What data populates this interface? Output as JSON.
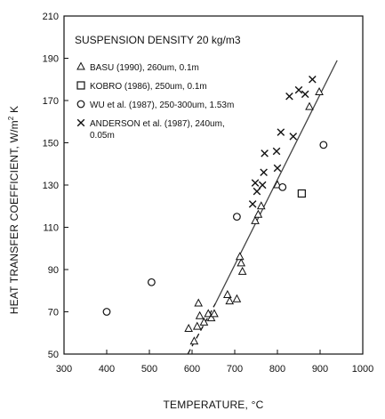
{
  "chart_data": {
    "type": "scatter",
    "title": "",
    "annotation": "SUSPENSION DENSITY 20 kg/m3",
    "xlabel": "TEMPERATURE, °C",
    "ylabel_main": "HEAT TRANSFER COEFFICIENT, W/m",
    "ylabel_sup": "2",
    "ylabel_tail": " K",
    "xlim": [
      300,
      1000
    ],
    "ylim": [
      50,
      210
    ],
    "xticks": [
      300,
      400,
      500,
      600,
      700,
      800,
      900,
      1000
    ],
    "yticks": [
      50,
      70,
      90,
      110,
      130,
      150,
      170,
      190,
      210
    ],
    "grid": false,
    "legend_position": "top-left",
    "series": [
      {
        "name": "BASU (1990), 260um, 0.1m",
        "marker": "triangle",
        "points": [
          [
            592,
            62
          ],
          [
            605,
            56
          ],
          [
            612,
            63
          ],
          [
            615,
            74
          ],
          [
            618,
            68
          ],
          [
            628,
            65
          ],
          [
            638,
            69
          ],
          [
            645,
            67
          ],
          [
            652,
            69
          ],
          [
            683,
            78
          ],
          [
            688,
            75
          ],
          [
            705,
            76
          ],
          [
            712,
            96
          ],
          [
            715,
            93
          ],
          [
            718,
            89
          ],
          [
            748,
            113
          ],
          [
            755,
            116
          ],
          [
            762,
            120
          ],
          [
            800,
            130
          ],
          [
            875,
            167
          ],
          [
            898,
            174
          ]
        ]
      },
      {
        "name": "KOBRO (1986), 250um, 0.1m",
        "marker": "square",
        "points": [
          [
            857,
            126
          ]
        ]
      },
      {
        "name": "WU et al. (1987), 250-300um, 1.53m",
        "marker": "circle",
        "points": [
          [
            400,
            70
          ],
          [
            505,
            84
          ],
          [
            705,
            115
          ],
          [
            812,
            129
          ],
          [
            908,
            149
          ]
        ]
      },
      {
        "name": "ANDERSON et al. (1987), 240um,",
        "name_line2": "0.05m",
        "marker": "x",
        "points": [
          [
            742,
            121
          ],
          [
            748,
            131
          ],
          [
            752,
            127
          ],
          [
            765,
            130
          ],
          [
            768,
            136
          ],
          [
            770,
            145
          ],
          [
            798,
            146
          ],
          [
            800,
            138
          ],
          [
            808,
            155
          ],
          [
            828,
            172
          ],
          [
            837,
            153
          ],
          [
            850,
            175
          ],
          [
            865,
            173
          ],
          [
            882,
            180
          ]
        ]
      }
    ],
    "fit_line": {
      "solid_from": [
        655,
        74
      ],
      "solid_to": [
        940,
        189
      ],
      "dashed_from": [
        590,
        50
      ],
      "dashed_to": [
        655,
        74
      ]
    }
  }
}
